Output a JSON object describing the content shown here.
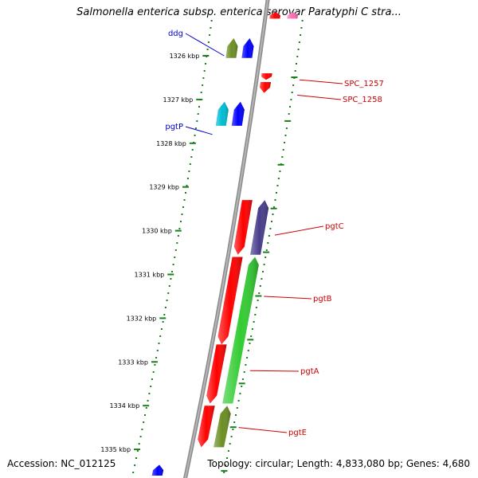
{
  "title": "Salmonella enterica subsp. enterica serovar Paratyphi C stra...",
  "footer": {
    "accession": "Accession: NC_012125",
    "topology": "Topology: circular; Length: 4,833,080 bp; Genes: 4,680"
  },
  "ticks": [
    {
      "label": "1326 kbp",
      "pos": 1326
    },
    {
      "label": "1327 kbp",
      "pos": 1327
    },
    {
      "label": "1328 kbp",
      "pos": 1328
    },
    {
      "label": "1329 kbp",
      "pos": 1329
    },
    {
      "label": "1330 kbp",
      "pos": 1330
    },
    {
      "label": "1331 kbp",
      "pos": 1331
    },
    {
      "label": "1332 kbp",
      "pos": 1332
    },
    {
      "label": "1333 kbp",
      "pos": 1333
    },
    {
      "label": "1334 kbp",
      "pos": 1334
    },
    {
      "label": "1335 kbp",
      "pos": 1335
    }
  ],
  "genes": [
    {
      "name": "ddg",
      "start": 1325.6,
      "end": 1326.05,
      "track": "neg-outer",
      "color": "#6b8e23",
      "strand": "+"
    },
    {
      "name": "",
      "start": 1325.6,
      "end": 1326.05,
      "track": "neg-inner",
      "color": "#0000ff",
      "strand": "+"
    },
    {
      "name": "pgtP",
      "start": 1327.05,
      "end": 1327.6,
      "track": "neg-outer",
      "color": "#00bcd4",
      "strand": "+"
    },
    {
      "name": "",
      "start": 1327.05,
      "end": 1327.6,
      "track": "neg-inner",
      "color": "#0000ff",
      "strand": "+"
    },
    {
      "name": "SPC_1257",
      "start": 1326.4,
      "end": 1326.55,
      "track": "pos-inner",
      "color": "#ff0000",
      "strand": "-"
    },
    {
      "name": "SPC_1258",
      "start": 1326.6,
      "end": 1326.85,
      "track": "pos-inner",
      "color": "#ff0000",
      "strand": "-"
    },
    {
      "name": "pgtC",
      "start": 1329.3,
      "end": 1330.55,
      "track": "pos-inner",
      "color": "#ff0000",
      "strand": "-"
    },
    {
      "name": "",
      "start": 1329.3,
      "end": 1330.55,
      "track": "pos-outer",
      "color": "#483d8b",
      "strand": "+"
    },
    {
      "name": "pgtB",
      "start": 1330.6,
      "end": 1332.6,
      "track": "pos-inner",
      "color": "#ff0000",
      "strand": "-"
    },
    {
      "name": "pgtA",
      "start": 1332.6,
      "end": 1333.95,
      "track": "pos-inner",
      "color": "#ff0000",
      "strand": "-"
    },
    {
      "name": "",
      "start": 1330.6,
      "end": 1333.95,
      "track": "pos-outer",
      "color": "#33cc33",
      "strand": "+"
    },
    {
      "name": "pgtE",
      "start": 1334.0,
      "end": 1334.95,
      "track": "pos-inner",
      "color": "#ff0000",
      "strand": "-"
    },
    {
      "name": "",
      "start": 1334.0,
      "end": 1334.95,
      "track": "pos-outer",
      "color": "#6b8e23",
      "strand": "+"
    },
    {
      "name": "",
      "start": 1335.35,
      "end": 1335.6,
      "track": "neg-outer",
      "color": "#0000ff",
      "strand": "+"
    },
    {
      "name": "",
      "start": 1325.0,
      "end": 1325.15,
      "track": "pos-inner",
      "color": "#ff0000",
      "strand": "+"
    },
    {
      "name": "",
      "start": 1325.0,
      "end": 1325.15,
      "track": "pos-outer",
      "color": "#ff69b4",
      "strand": "+"
    }
  ],
  "labels": [
    {
      "text": "ddg",
      "color": "#0000cc",
      "side": "left"
    },
    {
      "text": "pgtP",
      "color": "#0000cc",
      "side": "left"
    },
    {
      "text": "SPC_1257",
      "color": "#cc0000",
      "side": "right"
    },
    {
      "text": "SPC_1258",
      "color": "#cc0000",
      "side": "right"
    },
    {
      "text": "pgtC",
      "color": "#cc0000",
      "side": "right"
    },
    {
      "text": "pgtB",
      "color": "#cc0000",
      "side": "right"
    },
    {
      "text": "pgtA",
      "color": "#cc0000",
      "side": "right"
    },
    {
      "text": "pgtE",
      "color": "#cc0000",
      "side": "right"
    }
  ]
}
